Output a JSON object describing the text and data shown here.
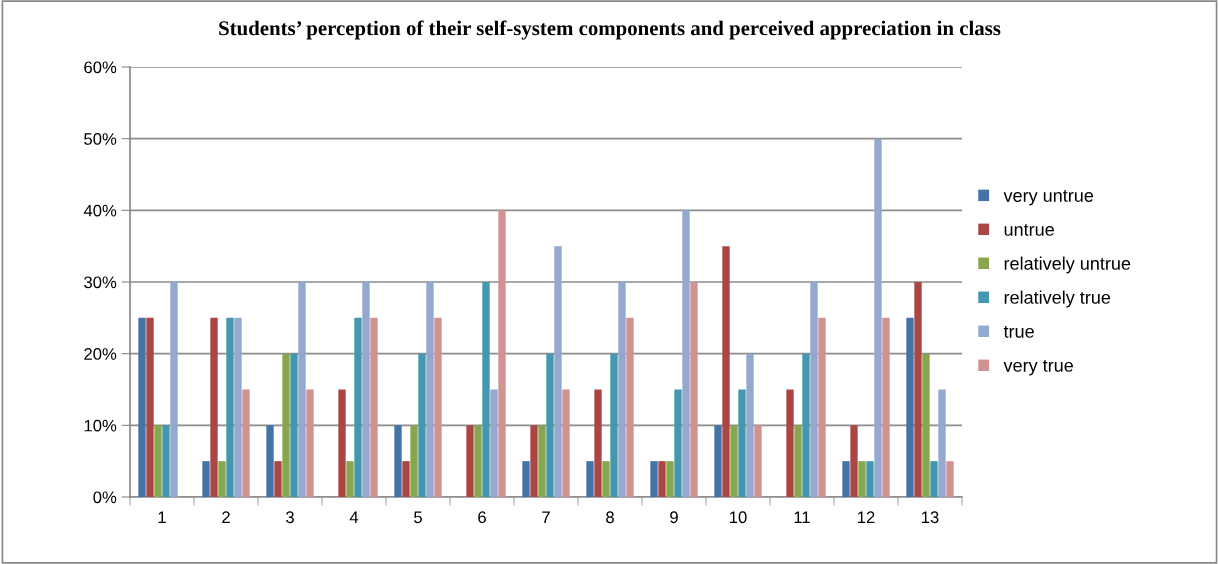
{
  "chart_data": {
    "type": "bar",
    "title": "Students’ perception of their self-system components and perceived appreciation in class",
    "categories": [
      "1",
      "2",
      "3",
      "4",
      "5",
      "6",
      "7",
      "8",
      "9",
      "10",
      "11",
      "12",
      "13"
    ],
    "series": [
      {
        "name": "very untrue",
        "color": "#4572a7",
        "values": [
          25,
          5,
          10,
          0,
          10,
          0,
          5,
          5,
          5,
          10,
          0,
          5,
          25
        ]
      },
      {
        "name": "untrue",
        "color": "#aa4643",
        "values": [
          25,
          25,
          5,
          15,
          5,
          10,
          10,
          15,
          5,
          35,
          15,
          10,
          30
        ]
      },
      {
        "name": "relatively untrue",
        "color": "#89a54e",
        "values": [
          10,
          5,
          20,
          5,
          10,
          10,
          10,
          5,
          5,
          10,
          10,
          5,
          20
        ]
      },
      {
        "name": "relatively true",
        "color": "#4198af",
        "values": [
          10,
          25,
          20,
          25,
          20,
          30,
          20,
          20,
          15,
          15,
          20,
          5,
          5
        ]
      },
      {
        "name": "true",
        "color": "#93a9cf",
        "values": [
          30,
          25,
          30,
          30,
          30,
          15,
          35,
          30,
          40,
          20,
          30,
          50,
          15
        ]
      },
      {
        "name": "very true",
        "color": "#d19392",
        "values": [
          0,
          15,
          15,
          25,
          25,
          40,
          15,
          25,
          30,
          10,
          25,
          25,
          5
        ]
      }
    ],
    "ylim": [
      0,
      60
    ],
    "yticks": [
      {
        "value": 0,
        "label": "0%"
      },
      {
        "value": 10,
        "label": "10%"
      },
      {
        "value": 20,
        "label": "20%"
      },
      {
        "value": 30,
        "label": "30%"
      },
      {
        "value": 40,
        "label": "40%"
      },
      {
        "value": 50,
        "label": "50%"
      },
      {
        "value": 60,
        "label": "60%"
      }
    ],
    "grid": "y",
    "legend": "right"
  }
}
